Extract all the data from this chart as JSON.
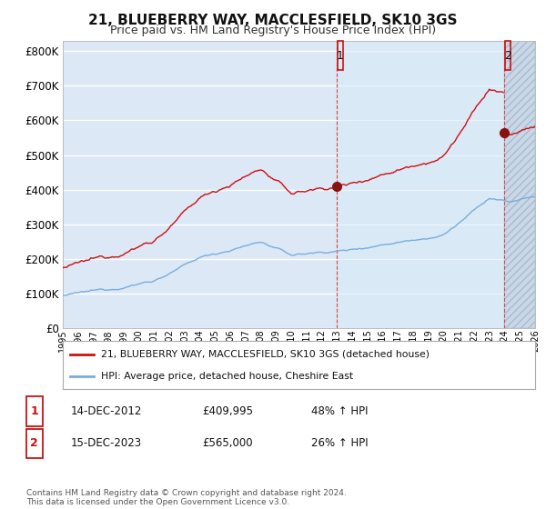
{
  "title": "21, BLUEBERRY WAY, MACCLESFIELD, SK10 3GS",
  "subtitle": "Price paid vs. HM Land Registry's House Price Index (HPI)",
  "ylim": [
    0,
    830000
  ],
  "yticks": [
    0,
    100000,
    200000,
    300000,
    400000,
    500000,
    600000,
    700000,
    800000
  ],
  "ytick_labels": [
    "£0",
    "£100K",
    "£200K",
    "£300K",
    "£400K",
    "£500K",
    "£600K",
    "£700K",
    "£800K"
  ],
  "background_color": "#ffffff",
  "plot_bg_color": "#dce8f5",
  "hatch_bg_color": "#c8d8e8",
  "grid_color": "#ffffff",
  "sale1_year": 2012.96,
  "sale1_price": 409995,
  "sale2_year": 2023.96,
  "sale2_price": 565000,
  "hpi_line_color": "#7aaddc",
  "price_line_color": "#cc1111",
  "dot_color": "#881111",
  "legend_line1": "21, BLUEBERRY WAY, MACCLESFIELD, SK10 3GS (detached house)",
  "legend_line2": "HPI: Average price, detached house, Cheshire East",
  "annotation1_date": "14-DEC-2012",
  "annotation1_price": "£409,995",
  "annotation1_hpi": "48% ↑ HPI",
  "annotation2_date": "15-DEC-2023",
  "annotation2_price": "£565,000",
  "annotation2_hpi": "26% ↑ HPI",
  "footer": "Contains HM Land Registry data © Crown copyright and database right 2024.\nThis data is licensed under the Open Government Licence v3.0.",
  "xstart": 1995,
  "xend": 2026,
  "title_fontsize": 11,
  "subtitle_fontsize": 9
}
